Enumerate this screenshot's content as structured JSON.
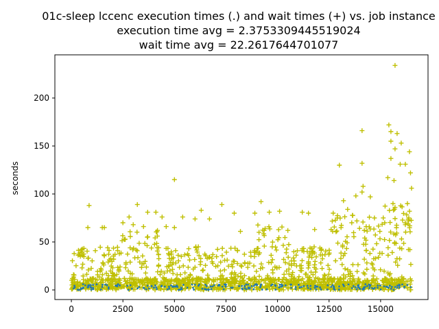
{
  "chart_data": {
    "type": "scatter",
    "title_lines": [
      "01c-sleep lccenc execution times (.) and wait times (+) vs. job instance",
      "execution time avg = 2.3753309445519024",
      "wait time avg = 22.2617644701077"
    ],
    "xlabel": "",
    "ylabel": "seconds",
    "xlim": [
      -800,
      17300
    ],
    "ylim": [
      -10,
      245
    ],
    "x_ticks": [
      0,
      2500,
      5000,
      7500,
      10000,
      12500,
      15000
    ],
    "x_tick_labels": [
      "0",
      "2500",
      "5000",
      "7500",
      "10000",
      "12500",
      "15000"
    ],
    "y_ticks": [
      0,
      50,
      100,
      150,
      200
    ],
    "y_tick_labels": [
      "0",
      "50",
      "100",
      "150",
      "200"
    ],
    "grid": false,
    "legend": "none",
    "series": [
      {
        "marker": "+",
        "color": "#bfbf00",
        "x_range": [
          0,
          16500
        ],
        "points": [
          [
            15700,
            234
          ],
          [
            15400,
            172
          ],
          [
            15500,
            165
          ],
          [
            14100,
            166
          ],
          [
            15800,
            163
          ],
          [
            15500,
            155
          ],
          [
            16000,
            153
          ],
          [
            15700,
            147
          ],
          [
            16400,
            144
          ],
          [
            15500,
            137
          ],
          [
            14100,
            132
          ],
          [
            13000,
            130
          ],
          [
            15950,
            131
          ],
          [
            16200,
            131
          ],
          [
            16450,
            122
          ],
          [
            5000,
            115
          ],
          [
            15650,
            114
          ],
          [
            15350,
            117
          ],
          [
            14150,
            108
          ],
          [
            16500,
            106
          ],
          [
            14100,
            102
          ],
          [
            13800,
            98
          ],
          [
            14500,
            97
          ],
          [
            9200,
            92
          ],
          [
            13200,
            93
          ],
          [
            15600,
            90
          ],
          [
            16300,
            90
          ],
          [
            860,
            88
          ],
          [
            3200,
            89
          ],
          [
            7300,
            89
          ],
          [
            6300,
            83
          ],
          [
            3700,
            81
          ],
          [
            4100,
            81
          ],
          [
            7900,
            80
          ],
          [
            11200,
            81
          ],
          [
            11500,
            80
          ],
          [
            8900,
            80
          ],
          [
            9600,
            81
          ],
          [
            10100,
            82
          ],
          [
            12700,
            80
          ],
          [
            13400,
            84
          ],
          [
            15700,
            86
          ],
          [
            5400,
            76
          ],
          [
            4400,
            76
          ],
          [
            2800,
            76
          ],
          [
            6000,
            74
          ],
          [
            6700,
            74
          ],
          [
            12900,
            75
          ],
          [
            14700,
            75
          ],
          [
            16400,
            82
          ],
          [
            2500,
            70
          ],
          [
            3000,
            68
          ],
          [
            3500,
            66
          ],
          [
            4600,
            66
          ],
          [
            5000,
            65
          ],
          [
            800,
            65
          ],
          [
            1500,
            65
          ],
          [
            1600,
            65
          ],
          [
            9400,
            64
          ],
          [
            13600,
            70
          ],
          [
            14300,
            66
          ],
          [
            15200,
            70
          ],
          [
            16200,
            68
          ],
          [
            12600,
            63
          ],
          [
            10500,
            62
          ],
          [
            11800,
            63
          ],
          [
            8200,
            61
          ]
        ],
        "band": {
          "y_range": [
            0,
            60
          ],
          "description": "dense band of wait times"
        }
      },
      {
        "marker": ".",
        "color": "#1f77b4",
        "x_range": [
          0,
          16500
        ],
        "y_range": [
          0,
          6
        ],
        "description": "execution times near zero"
      }
    ]
  }
}
